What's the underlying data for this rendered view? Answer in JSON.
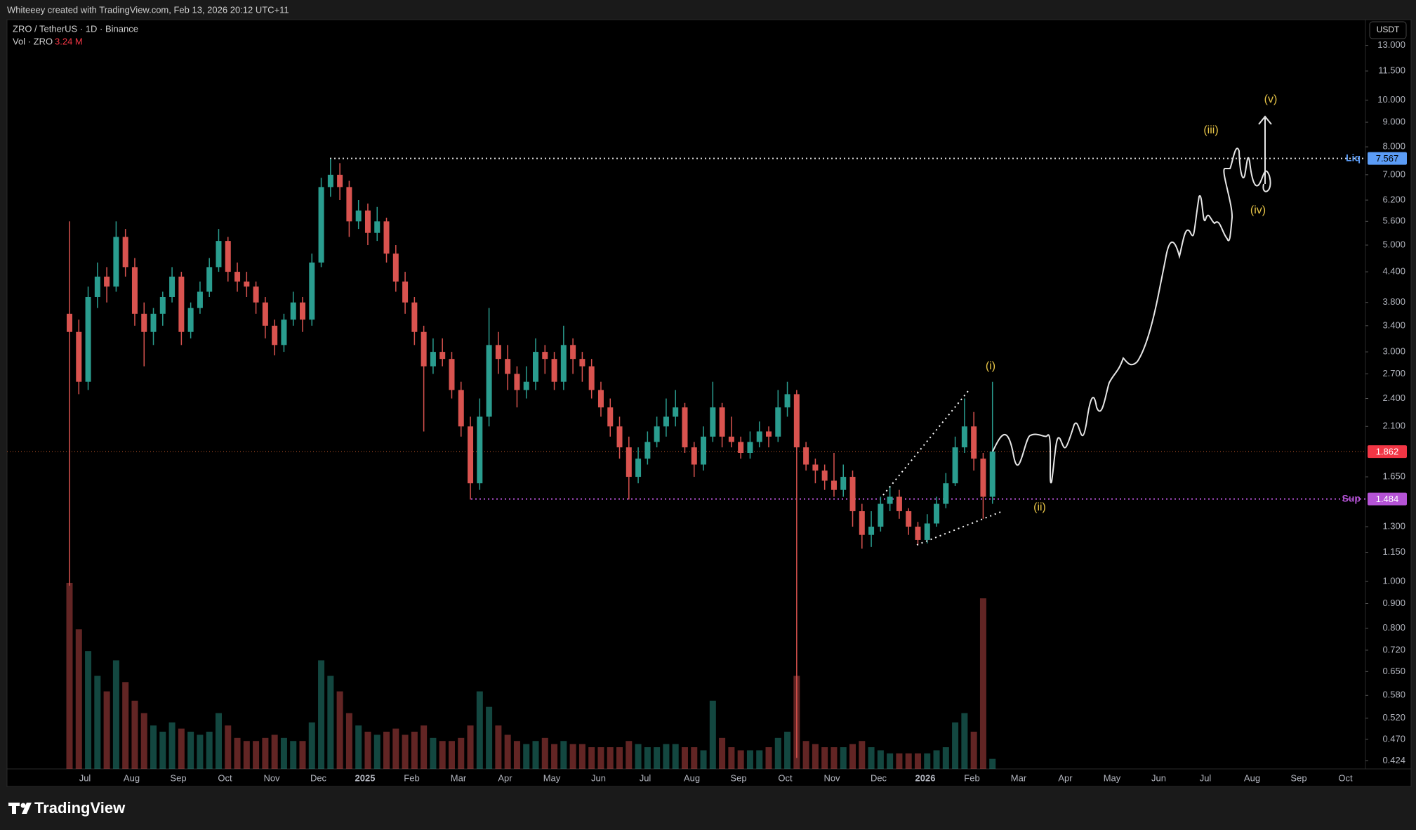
{
  "header": {
    "credit": "Whiteeey created with TradingView.com, Feb 13, 2026 20:12 UTC+11"
  },
  "chart_data": {
    "type": "candlestick",
    "title": "ZRO / TetherUS · 1D · Binance",
    "currency": "USDT",
    "log_scale": true,
    "grid": false,
    "up_color": "#2a9d8f",
    "down_color": "#d9534f",
    "candles": [
      [
        3.6,
        5.6,
        0.98,
        3.3
      ],
      [
        3.3,
        3.5,
        2.45,
        2.6
      ],
      [
        2.6,
        4.1,
        2.5,
        3.9
      ],
      [
        3.9,
        4.6,
        3.7,
        4.3
      ],
      [
        4.3,
        4.5,
        3.8,
        4.1
      ],
      [
        4.1,
        5.6,
        4.0,
        5.2
      ],
      [
        5.2,
        5.4,
        4.3,
        4.5
      ],
      [
        4.5,
        4.7,
        3.4,
        3.6
      ],
      [
        3.6,
        3.8,
        2.8,
        3.3
      ],
      [
        3.3,
        3.7,
        3.1,
        3.6
      ],
      [
        3.6,
        4.0,
        3.4,
        3.9
      ],
      [
        3.9,
        4.5,
        3.8,
        4.3
      ],
      [
        4.3,
        4.4,
        3.1,
        3.3
      ],
      [
        3.3,
        3.8,
        3.2,
        3.7
      ],
      [
        3.7,
        4.2,
        3.6,
        4.0
      ],
      [
        4.0,
        4.7,
        3.9,
        4.5
      ],
      [
        4.5,
        5.4,
        4.4,
        5.1
      ],
      [
        5.1,
        5.2,
        4.2,
        4.4
      ],
      [
        4.4,
        4.6,
        4.0,
        4.2
      ],
      [
        4.2,
        4.4,
        3.9,
        4.1
      ],
      [
        4.1,
        4.2,
        3.6,
        3.8
      ],
      [
        3.8,
        3.9,
        3.2,
        3.4
      ],
      [
        3.4,
        3.5,
        2.95,
        3.1
      ],
      [
        3.1,
        3.6,
        3.0,
        3.5
      ],
      [
        3.5,
        4.0,
        3.4,
        3.8
      ],
      [
        3.8,
        3.9,
        3.3,
        3.5
      ],
      [
        3.5,
        4.8,
        3.4,
        4.6
      ],
      [
        4.6,
        6.9,
        4.5,
        6.6
      ],
      [
        6.6,
        7.55,
        6.3,
        7.0
      ],
      [
        7.0,
        7.4,
        6.2,
        6.6
      ],
      [
        6.6,
        6.8,
        5.2,
        5.6
      ],
      [
        5.6,
        6.2,
        5.4,
        5.9
      ],
      [
        5.9,
        6.1,
        5.0,
        5.3
      ],
      [
        5.3,
        6.0,
        5.1,
        5.6
      ],
      [
        5.6,
        5.7,
        4.6,
        4.8
      ],
      [
        4.8,
        5.0,
        4.0,
        4.2
      ],
      [
        4.2,
        4.4,
        3.6,
        3.8
      ],
      [
        3.8,
        3.9,
        3.1,
        3.3
      ],
      [
        3.3,
        3.4,
        2.05,
        2.8
      ],
      [
        2.8,
        3.2,
        2.7,
        3.0
      ],
      [
        3.0,
        3.2,
        2.8,
        2.9
      ],
      [
        2.9,
        3.0,
        2.4,
        2.5
      ],
      [
        2.5,
        2.6,
        2.0,
        2.1
      ],
      [
        2.1,
        2.2,
        1.48,
        1.6
      ],
      [
        1.6,
        2.4,
        1.55,
        2.2
      ],
      [
        2.2,
        3.7,
        2.1,
        3.1
      ],
      [
        3.1,
        3.3,
        2.7,
        2.9
      ],
      [
        2.9,
        3.1,
        2.5,
        2.7
      ],
      [
        2.7,
        2.8,
        2.3,
        2.5
      ],
      [
        2.5,
        2.8,
        2.4,
        2.6
      ],
      [
        2.6,
        3.2,
        2.5,
        3.0
      ],
      [
        3.0,
        3.1,
        2.7,
        2.9
      ],
      [
        2.9,
        3.0,
        2.5,
        2.6
      ],
      [
        2.6,
        3.4,
        2.5,
        3.1
      ],
      [
        3.1,
        3.2,
        2.7,
        2.9
      ],
      [
        2.9,
        3.0,
        2.6,
        2.8
      ],
      [
        2.8,
        2.9,
        2.4,
        2.5
      ],
      [
        2.5,
        2.6,
        2.2,
        2.3
      ],
      [
        2.3,
        2.4,
        2.0,
        2.1
      ],
      [
        2.1,
        2.2,
        1.8,
        1.9
      ],
      [
        1.9,
        2.0,
        1.48,
        1.65
      ],
      [
        1.65,
        1.9,
        1.6,
        1.8
      ],
      [
        1.8,
        2.05,
        1.75,
        1.95
      ],
      [
        1.95,
        2.2,
        1.9,
        2.1
      ],
      [
        2.1,
        2.4,
        2.0,
        2.2
      ],
      [
        2.2,
        2.5,
        2.1,
        2.3
      ],
      [
        2.3,
        2.35,
        1.85,
        1.9
      ],
      [
        1.9,
        1.95,
        1.65,
        1.75
      ],
      [
        1.75,
        2.1,
        1.7,
        2.0
      ],
      [
        2.0,
        2.6,
        1.95,
        2.3
      ],
      [
        2.3,
        2.35,
        1.9,
        2.0
      ],
      [
        2.0,
        2.2,
        1.9,
        1.95
      ],
      [
        1.95,
        2.0,
        1.8,
        1.85
      ],
      [
        1.85,
        2.05,
        1.8,
        1.95
      ],
      [
        1.95,
        2.15,
        1.9,
        2.05
      ],
      [
        2.05,
        2.1,
        1.9,
        2.0
      ],
      [
        2.0,
        2.5,
        1.95,
        2.3
      ],
      [
        2.3,
        2.6,
        2.2,
        2.45
      ],
      [
        2.45,
        2.5,
        0.43,
        1.9
      ],
      [
        1.9,
        1.95,
        1.7,
        1.75
      ],
      [
        1.75,
        1.8,
        1.6,
        1.7
      ],
      [
        1.7,
        1.75,
        1.55,
        1.62
      ],
      [
        1.62,
        1.85,
        1.5,
        1.55
      ],
      [
        1.55,
        1.75,
        1.5,
        1.65
      ],
      [
        1.65,
        1.7,
        1.3,
        1.4
      ],
      [
        1.4,
        1.45,
        1.17,
        1.25
      ],
      [
        1.25,
        1.4,
        1.18,
        1.3
      ],
      [
        1.3,
        1.5,
        1.27,
        1.45
      ],
      [
        1.45,
        1.58,
        1.4,
        1.5
      ],
      [
        1.5,
        1.55,
        1.35,
        1.4
      ],
      [
        1.4,
        1.42,
        1.25,
        1.3
      ],
      [
        1.3,
        1.33,
        1.19,
        1.22
      ],
      [
        1.22,
        1.38,
        1.2,
        1.32
      ],
      [
        1.32,
        1.5,
        1.3,
        1.45
      ],
      [
        1.45,
        1.68,
        1.42,
        1.6
      ],
      [
        1.6,
        2.0,
        1.58,
        1.9
      ],
      [
        1.9,
        2.4,
        1.85,
        2.1
      ],
      [
        2.1,
        2.25,
        1.7,
        1.8
      ],
      [
        1.8,
        1.85,
        1.35,
        1.5
      ],
      [
        1.5,
        2.6,
        1.45,
        1.862
      ]
    ],
    "volume": {
      "name": "Vol · ZRO",
      "legend_value": "3.24 M",
      "values": [
        60,
        45,
        38,
        30,
        25,
        35,
        28,
        22,
        18,
        14,
        12,
        15,
        13,
        12,
        11,
        12,
        18,
        14,
        10,
        9,
        9,
        10,
        11,
        10,
        9,
        9,
        15,
        35,
        30,
        25,
        18,
        14,
        12,
        11,
        12,
        13,
        11,
        12,
        14,
        10,
        9,
        9,
        10,
        14,
        25,
        20,
        14,
        11,
        9,
        8,
        9,
        10,
        8,
        9,
        8,
        8,
        7,
        7,
        7,
        7,
        9,
        8,
        7,
        7,
        8,
        8,
        7,
        7,
        6,
        22,
        10,
        7,
        6,
        6,
        6,
        7,
        10,
        12,
        30,
        9,
        8,
        7,
        7,
        7,
        8,
        9,
        7,
        6,
        5,
        5,
        5,
        5,
        5,
        6,
        7,
        15,
        18,
        12,
        55,
        3.24
      ]
    },
    "xticks": [
      "Jul",
      "Aug",
      "Sep",
      "Oct",
      "Nov",
      "Dec",
      "2025",
      "Feb",
      "Mar",
      "Apr",
      "May",
      "Jun",
      "Jul",
      "Aug",
      "Sep",
      "Oct",
      "Nov",
      "Dec",
      "2026",
      "Feb",
      "Mar",
      "Apr",
      "May",
      "Jun",
      "Jul",
      "Aug",
      "Sep",
      "Oct"
    ],
    "ylim": [
      0.408,
      14.7
    ],
    "yticks": [
      {
        "value": 13,
        "label": "13.000"
      },
      {
        "value": 11.5,
        "label": "11.500"
      },
      {
        "value": 10,
        "label": "10.000"
      },
      {
        "value": 9,
        "label": "9.000"
      },
      {
        "value": 8,
        "label": "8.000"
      },
      {
        "value": 7,
        "label": "7.000"
      },
      {
        "value": 6.2,
        "label": "6.200"
      },
      {
        "value": 5.6,
        "label": "5.600"
      },
      {
        "value": 5,
        "label": "5.000"
      },
      {
        "value": 4.4,
        "label": "4.400"
      },
      {
        "value": 3.8,
        "label": "3.800"
      },
      {
        "value": 3.4,
        "label": "3.400"
      },
      {
        "value": 3,
        "label": "3.000"
      },
      {
        "value": 2.7,
        "label": "2.700"
      },
      {
        "value": 2.4,
        "label": "2.400"
      },
      {
        "value": 2.1,
        "label": "2.100"
      },
      {
        "value": 1.65,
        "label": "1.650"
      },
      {
        "value": 1.3,
        "label": "1.300"
      },
      {
        "value": 1.15,
        "label": "1.150"
      },
      {
        "value": 1,
        "label": "1.000"
      },
      {
        "value": 0.9,
        "label": "0.900"
      },
      {
        "value": 0.8,
        "label": "0.800"
      },
      {
        "value": 0.72,
        "label": "0.720"
      },
      {
        "value": 0.65,
        "label": "0.650"
      },
      {
        "value": 0.58,
        "label": "0.580"
      },
      {
        "value": 0.52,
        "label": "0.520"
      },
      {
        "value": 0.47,
        "label": "0.470"
      },
      {
        "value": 0.424,
        "label": "0.424"
      }
    ],
    "levels": [
      {
        "name": "Liq",
        "value": 7.567,
        "color": "#5b9cf6"
      },
      {
        "name": "Sup",
        "value": 1.484,
        "color": "#b553d6"
      }
    ],
    "current_color": "#f23645",
    "annotations": [
      "(i)",
      "(ii)",
      "(iii)",
      "(iv)",
      "(v)"
    ],
    "annotation_color": "#e8c547"
  },
  "footer": {
    "brand": "TradingView"
  }
}
